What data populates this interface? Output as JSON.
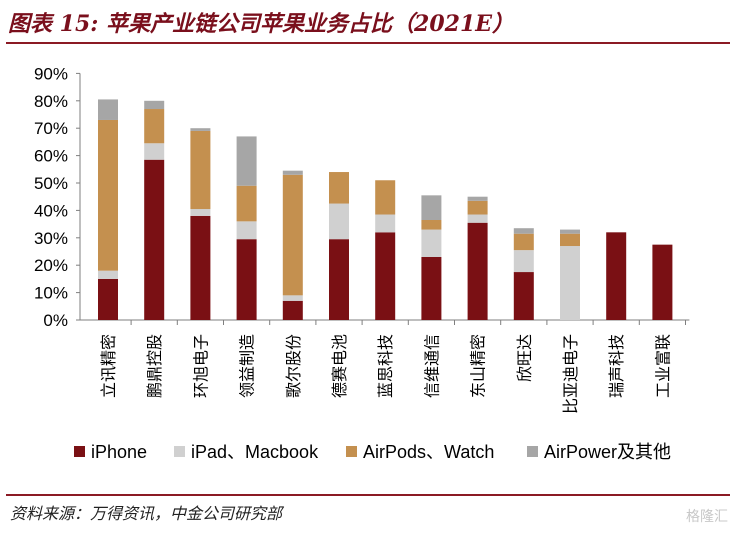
{
  "header": {
    "title": "图表 15:  苹果产业链公司苹果业务占比（2021E）"
  },
  "footer": {
    "source": "资料来源：万得资讯，中金公司研究部",
    "watermark": "格隆汇"
  },
  "colors": {
    "rule": "#8b1a24",
    "iphone": "#7a1014",
    "ipad_mac": "#d0d0d0",
    "airpods_watch": "#c4904f",
    "airpower_other": "#a6a6a6"
  },
  "chart_data": {
    "type": "bar",
    "stacked": true,
    "categories": [
      "立讯精密",
      "鹏鼎控股",
      "环旭电子",
      "领益制造",
      "歌尔股份",
      "德赛电池",
      "蓝思科技",
      "信维通信",
      "东山精密",
      "欣旺达",
      "比亚迪电子",
      "瑞声科技",
      "工业富联"
    ],
    "series": [
      {
        "name": "iPhone",
        "color": "#7a1014",
        "values": [
          15,
          58.5,
          38,
          29.5,
          7,
          29.5,
          32,
          23,
          35.5,
          17.5,
          0,
          32,
          27.5
        ]
      },
      {
        "name": "iPad、Macbook",
        "color": "#d0d0d0",
        "values": [
          3,
          6,
          2.5,
          6.5,
          2,
          13,
          6.5,
          10,
          3,
          8,
          27,
          0,
          0
        ]
      },
      {
        "name": "AirPods、Watch",
        "color": "#c4904f",
        "values": [
          55,
          12.5,
          28.5,
          13,
          44,
          11.5,
          12.5,
          3.5,
          5,
          6,
          4.5,
          0,
          0
        ]
      },
      {
        "name": "AirPower及其他",
        "color": "#a6a6a6",
        "values": [
          7.5,
          3,
          1,
          18,
          1.5,
          0,
          0,
          9,
          1.5,
          2,
          1.5,
          0,
          0
        ]
      }
    ],
    "y_ticks": [
      "0%",
      "10%",
      "20%",
      "30%",
      "40%",
      "50%",
      "60%",
      "70%",
      "80%",
      "90%"
    ],
    "ylim": [
      0,
      90
    ],
    "legend_position": "bottom",
    "grid": false
  }
}
